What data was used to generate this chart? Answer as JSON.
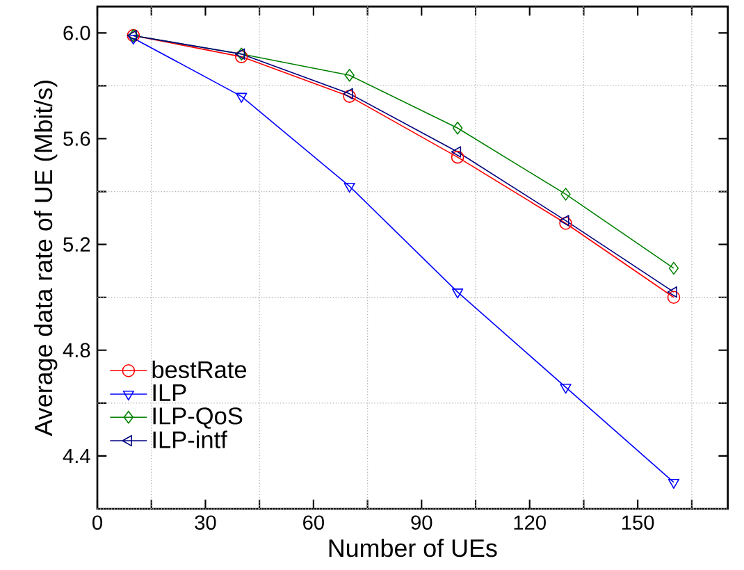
{
  "chart_data": {
    "type": "line",
    "xlabel": "Number of UEs",
    "ylabel": "Average data rate of UE (Mbit/s)",
    "xlim": [
      0,
      175
    ],
    "ylim": [
      4.2,
      6.1
    ],
    "xticks": [
      0,
      {
        "value": 15,
        "label": null
      },
      30,
      {
        "value": 45,
        "label": null
      },
      60,
      {
        "value": 75,
        "label": null
      },
      90,
      {
        "value": 105,
        "label": null
      },
      120,
      {
        "value": 135,
        "label": null
      },
      150,
      {
        "value": 165,
        "label": null
      }
    ],
    "yticks": [
      {
        "value": 4.2,
        "label": null
      },
      {
        "value": 4.4,
        "label": "4.4"
      },
      {
        "value": 4.6,
        "label": null
      },
      {
        "value": 4.8,
        "label": "4.8"
      },
      {
        "value": 5.0,
        "label": null
      },
      {
        "value": 5.2,
        "label": "5.2"
      },
      {
        "value": 5.4,
        "label": null
      },
      {
        "value": 5.6,
        "label": "5.6"
      },
      {
        "value": 5.8,
        "label": null
      },
      {
        "value": 6.0,
        "label": "6.0"
      }
    ],
    "grid": true,
    "legend": "bottom left",
    "line_style": "solid",
    "x": [
      10,
      40,
      70,
      100,
      130,
      160
    ],
    "series": [
      {
        "name": "bestRate",
        "color": "#ff0000",
        "marker": "circle",
        "values": [
          5.99,
          5.91,
          5.76,
          5.53,
          5.28,
          5.0
        ]
      },
      {
        "name": "ILP",
        "color": "#0000ff",
        "marker": "triangle down",
        "values": [
          5.98,
          5.76,
          5.42,
          5.02,
          4.66,
          4.3
        ]
      },
      {
        "name": "ILP-QoS",
        "color": "#008000",
        "marker": "diamond",
        "values": [
          5.99,
          5.92,
          5.84,
          5.64,
          5.39,
          5.11
        ]
      },
      {
        "name": "ILP-intf",
        "color": "#000080",
        "marker": "triangle left",
        "values": [
          5.99,
          5.92,
          5.77,
          5.55,
          5.29,
          5.02
        ]
      }
    ]
  }
}
